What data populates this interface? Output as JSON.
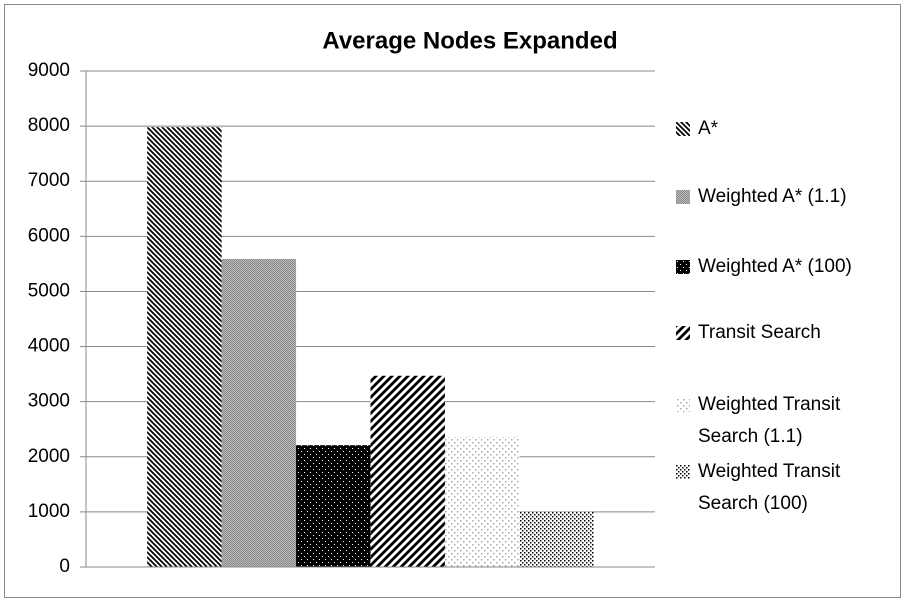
{
  "chart_data": {
    "type": "bar",
    "title": "Average Nodes Expanded",
    "categories": [
      null
    ],
    "series": [
      {
        "name": "A*",
        "color": "#000000",
        "pattern": "backslash",
        "values": [
          7980
        ]
      },
      {
        "name": "Weighted A* (1.1)",
        "color": "#888888",
        "pattern": "fine-dots",
        "values": [
          5590
        ]
      },
      {
        "name": "Weighted A* (100)",
        "color": "#000000",
        "pattern": "dark-dots",
        "values": [
          2210
        ]
      },
      {
        "name": "Transit Search",
        "color": "#000000",
        "pattern": "slash",
        "values": [
          3470
        ]
      },
      {
        "name": "Weighted Transit Search (1.1)",
        "color": "#aaaaaa",
        "pattern": "sparse-dots",
        "values": [
          2360
        ]
      },
      {
        "name": "Weighted Transit Search (100)",
        "color": "#000000",
        "pattern": "dots",
        "values": [
          1000
        ]
      }
    ],
    "ylim": [
      0,
      9000
    ],
    "yticks": [
      0,
      1000,
      2000,
      3000,
      4000,
      5000,
      6000,
      7000,
      8000,
      9000
    ],
    "grid": true,
    "legend": "right"
  }
}
